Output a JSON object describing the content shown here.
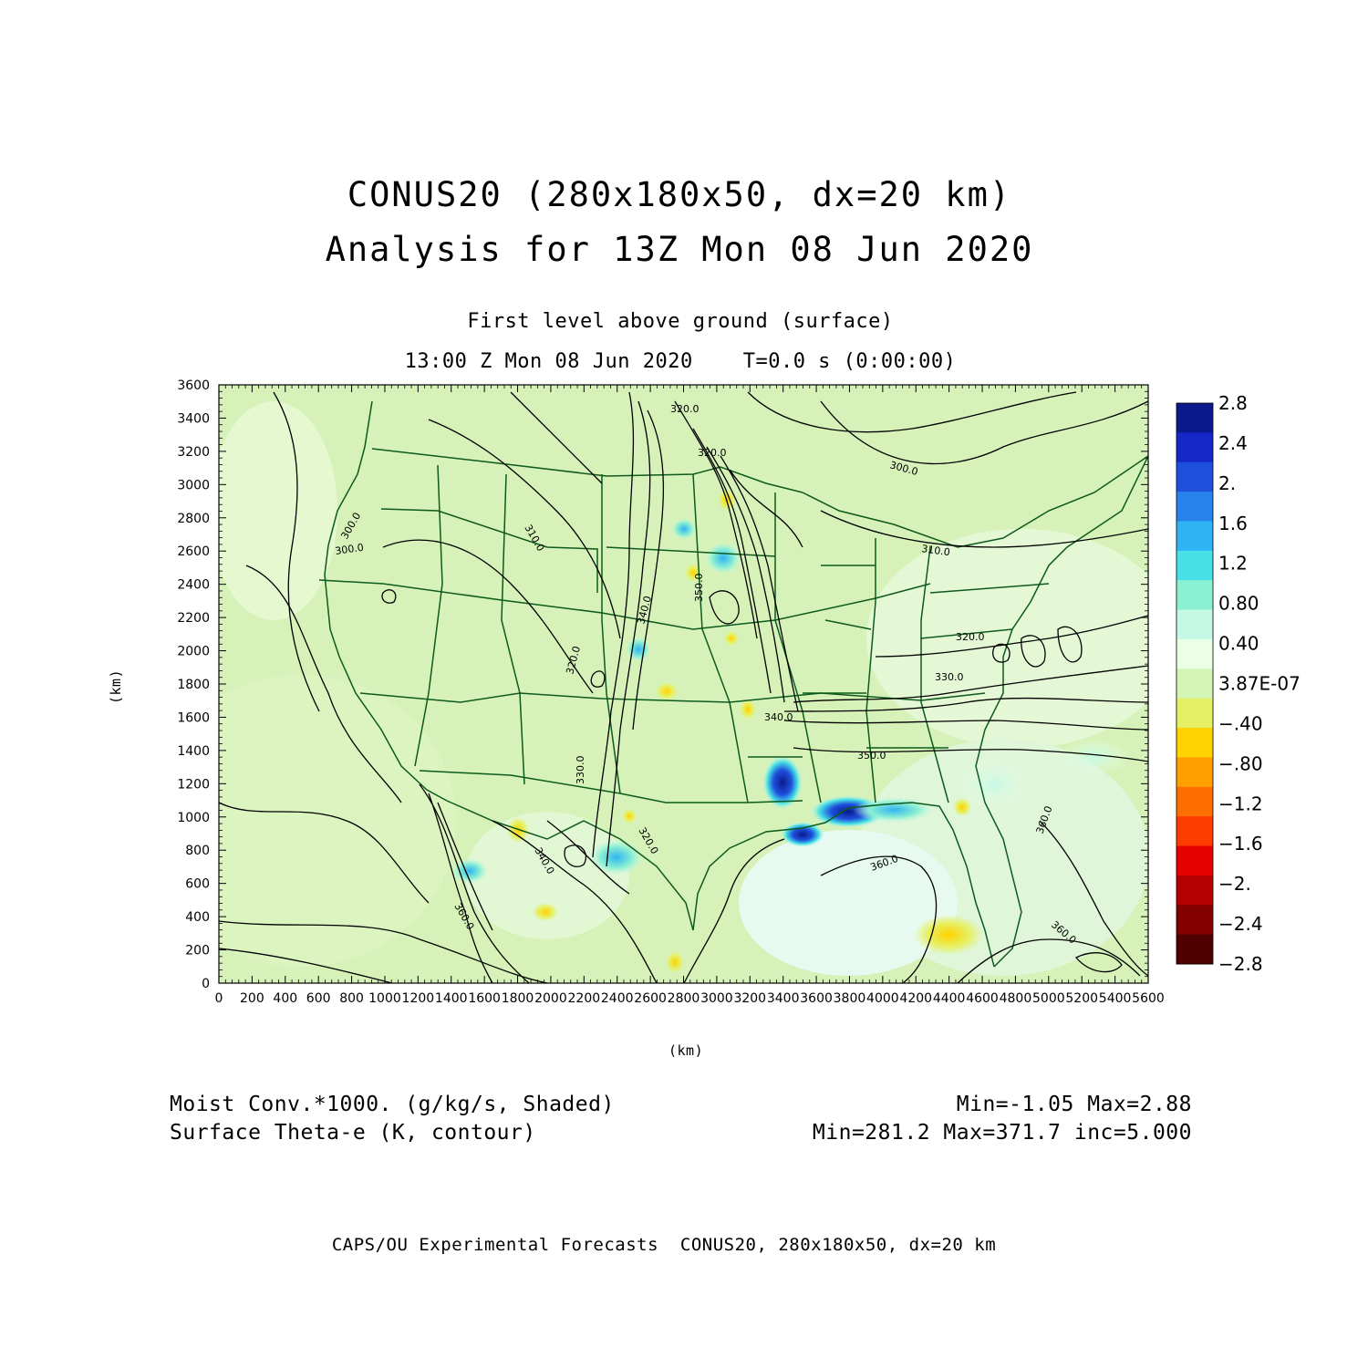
{
  "title": {
    "line1": "CONUS20 (280x180x50, dx=20 km)",
    "line2": "Analysis for 13Z Mon 08 Jun 2020"
  },
  "subtitle": {
    "line1": "First level above ground (surface)",
    "line2": "13:00 Z Mon 08 Jun 2020    T=0.0 s (0:00:00)"
  },
  "axes": {
    "x_label": "(km)",
    "y_label": "(km)",
    "x_ticks": [
      "0",
      "200",
      "400",
      "600",
      "800",
      "1000",
      "1200",
      "1400",
      "1600",
      "1800",
      "2000",
      "2200",
      "2400",
      "2600",
      "2800",
      "3000",
      "3200",
      "3400",
      "3600",
      "3800",
      "4000",
      "4200",
      "4400",
      "4600",
      "4800",
      "5000",
      "5200",
      "5400",
      "5600"
    ],
    "y_ticks": [
      "0",
      "200",
      "400",
      "600",
      "800",
      "1000",
      "1200",
      "1400",
      "1600",
      "1800",
      "2000",
      "2200",
      "2400",
      "2600",
      "2800",
      "3000",
      "3200",
      "3400",
      "3600"
    ],
    "x_range": [
      0,
      5600
    ],
    "y_range": [
      0,
      3600
    ]
  },
  "colorbar": {
    "labels": [
      "2.8",
      "2.4",
      "2.",
      "1.6",
      "1.2",
      "0.80",
      "0.40",
      "3.87E-07",
      "-.40",
      "-.80",
      "-1.2",
      "-1.6",
      "-2.",
      "-2.4",
      "-2.8"
    ],
    "colors": [
      "#0a1a8c",
      "#1428c8",
      "#1e50dc",
      "#2882ec",
      "#30b4f4",
      "#46e0e6",
      "#8cf0d2",
      "#c6f8e6",
      "#eaffe6",
      "#d2f4b4",
      "#e6f064",
      "#ffd200",
      "#ffa000",
      "#ff6e00",
      "#ff3c00",
      "#e60000",
      "#b40000",
      "#820000",
      "#500000"
    ]
  },
  "contour_labels": [
    "300.0",
    "300.0",
    "310.0",
    "310.0",
    "320.0",
    "320.0",
    "330.0",
    "340.0",
    "350.0",
    "360.0",
    "360.0",
    "360.0",
    "340.0",
    "320.0",
    "340.0",
    "330.0",
    "320.0",
    "350.0",
    "360.0",
    "320.0",
    "300.0"
  ],
  "legend": {
    "left_line1": "Moist Conv.*1000. (g/kg/s, Shaded)",
    "left_line2": "Surface Theta-e (K, contour)",
    "right_line1": "Min=-1.05 Max=2.88",
    "right_line2": "Min=281.2 Max=371.7 inc=5.000"
  },
  "footer": "CAPS/OU Experimental Forecasts  CONUS20, 280x180x50, dx=20 km"
}
